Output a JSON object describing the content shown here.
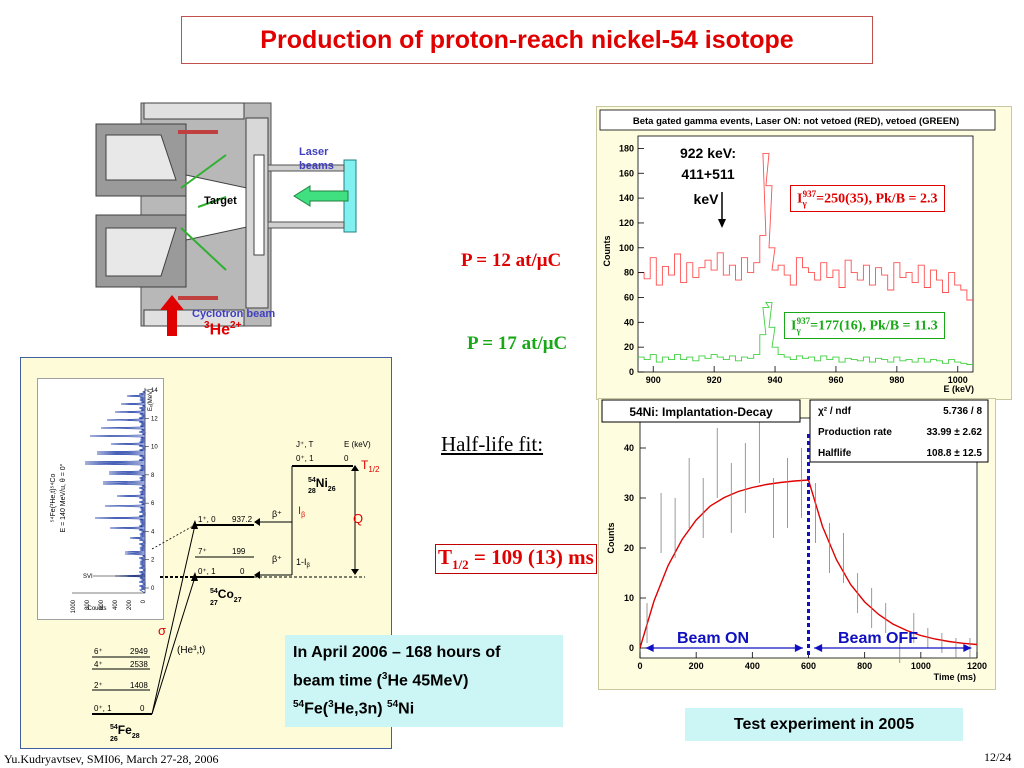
{
  "slide": {
    "title": "Production of proton-reach nickel-54 isotope",
    "footer_left": "Yu.Kudryavtsev, SMI06, March 27-28, 2006",
    "page_number": "12/24"
  },
  "setup": {
    "laser_label_1": "Laser",
    "laser_label_2": "beams",
    "target_label": "Target",
    "cyclotron_label": "Cyclotron beam",
    "he_label": "He",
    "he_mass": "3",
    "he_charge": "2+"
  },
  "pressure": {
    "p1": "P = 12 at/μC",
    "p2": "P = 17 at/μC"
  },
  "halflife": {
    "label": "Half-life fit:",
    "result_T": "T",
    "result_sub": "1/2",
    "result_value": " = 109 (13) ms"
  },
  "info_box": {
    "line1": "In April 2006 – 168 hours of",
    "line2a": "beam time (",
    "line2_sup": "3",
    "line2b": "He 45MeV)",
    "line3_sup1": "54",
    "line3a": "Fe(",
    "line3_sup2": "3",
    "line3b": "He,3n) ",
    "line3_sup3": "54",
    "line3c": "Ni"
  },
  "test_box": {
    "label": "Test experiment in 2005"
  },
  "gamma_chart": {
    "title": "Beta gated gamma events, Laser ON: not vetoed (RED), vetoed (GREEN)",
    "ylabel": "Counts",
    "xlabel": "E (keV)",
    "annotation_1": "922 keV:",
    "annotation_2": "411+511",
    "annotation_3": "keV",
    "red_label_pre": "I",
    "red_label_sub": "γ",
    "red_label_sup": "937",
    "red_label_post": "=250(35), Pk/B = 2.3",
    "green_label_pre": "I",
    "green_label_sub": "γ",
    "green_label_sup": "937",
    "green_label_post": "=177(16), Pk/B = 11.3"
  },
  "decay_chart": {
    "title": "54Ni: Implantation-Decay",
    "ylabel": "Counts",
    "xlabel": "Time (ms)",
    "stats": [
      {
        "name": "χ² / ndf",
        "value": "5.736 / 8"
      },
      {
        "name": "Production rate",
        "value": "33.99 ± 2.62"
      },
      {
        "name": "Halflife",
        "value": "108.8 ± 12.5"
      }
    ],
    "beam_on": "Beam ON",
    "beam_off": "Beam OFF"
  },
  "level_scheme": {
    "ni_label": "Ni",
    "ni_mass": "54",
    "ni_z": "28",
    "ni_n": "26",
    "co_label": "Co",
    "co_mass": "54",
    "co_z": "27",
    "co_n": "27",
    "fe_label": "Fe",
    "fe_mass": "54",
    "fe_z": "26",
    "fe_n": "28",
    "jt_header": "J⁺, T",
    "e_header": "E (keV)",
    "ni_level_jt": "0⁺, 1",
    "ni_level_e": "0",
    "co_levels": [
      {
        "jt": "1⁺, 0",
        "e": "937.2"
      },
      {
        "jt": "7⁺",
        "e": "199"
      },
      {
        "jt": "0⁺, 1",
        "e": "0"
      }
    ],
    "fe_levels": [
      {
        "jt": "6⁺",
        "e": "2949"
      },
      {
        "jt": "4⁺",
        "e": "2538"
      },
      {
        "jt": "2⁺",
        "e": "1408"
      },
      {
        "jt": "0⁺, 1",
        "e": "0"
      }
    ],
    "t_half": "T",
    "t_half_sub": "1/2",
    "q_label": "Q",
    "beta_plus_1": "β⁺",
    "i_beta": "I",
    "i_beta_sub": "β",
    "beta_plus_2": "β⁺",
    "one_minus_i": "1-I",
    "one_minus_i_sub": "β",
    "sigma": "σ",
    "reaction": "(He³,t)"
  },
  "spectrum_inset": {
    "rot_label_1": "⁵⁴Fe(³He,t)⁵⁴Co",
    "rot_label_2": "E = 140 MeV/u, θ = 0°",
    "ex_label": "Eₓ(MeV)",
    "counts_label": "Counts",
    "svi_label": "SVI",
    "tick_counts": [
      "1000",
      "800",
      "600",
      "400",
      "200",
      "0"
    ],
    "tick_ex": [
      "14",
      "12",
      "10",
      "8",
      "6",
      "4",
      "2",
      "0"
    ]
  },
  "chart_data": [
    {
      "type": "line",
      "title": "Beta gated gamma events, Laser ON: not vetoed (RED), vetoed (GREEN)",
      "xlabel": "E (keV)",
      "ylabel": "Counts",
      "xlim": [
        895,
        1005
      ],
      "ylim": [
        0,
        190
      ],
      "xticks": [
        900,
        920,
        940,
        960,
        980,
        1000
      ],
      "yticks": [
        0,
        20,
        40,
        60,
        80,
        100,
        120,
        140,
        160,
        180
      ],
      "series": [
        {
          "name": "RED",
          "color": "#ff5050",
          "x": [
            896,
            898,
            900,
            902,
            904,
            906,
            908,
            910,
            912,
            914,
            916,
            918,
            920,
            922,
            924,
            926,
            928,
            930,
            932,
            934,
            936,
            937,
            938,
            939,
            940,
            942,
            944,
            946,
            948,
            950,
            952,
            954,
            956,
            958,
            960,
            962,
            964,
            966,
            968,
            970,
            972,
            974,
            976,
            978,
            980,
            982,
            984,
            986,
            988,
            990,
            992,
            994,
            996,
            998,
            1000,
            1002,
            1004
          ],
          "y": [
            80,
            75,
            92,
            70,
            85,
            78,
            95,
            72,
            88,
            76,
            84,
            90,
            82,
            96,
            78,
            86,
            74,
            92,
            80,
            88,
            110,
            176,
            150,
            100,
            82,
            86,
            78,
            70,
            92,
            84,
            80,
            74,
            88,
            76,
            82,
            68,
            90,
            80,
            74,
            86,
            70,
            84,
            78,
            66,
            88,
            76,
            80,
            72,
            86,
            68,
            82,
            74,
            64,
            80,
            70,
            66,
            58
          ]
        },
        {
          "name": "GREEN",
          "color": "#40d040",
          "x": [
            896,
            898,
            900,
            902,
            904,
            906,
            908,
            910,
            912,
            914,
            916,
            918,
            920,
            922,
            924,
            926,
            928,
            930,
            932,
            934,
            936,
            937,
            938,
            939,
            940,
            942,
            944,
            946,
            948,
            950,
            952,
            954,
            956,
            958,
            960,
            962,
            964,
            966,
            968,
            970,
            972,
            974,
            976,
            978,
            980,
            982,
            984,
            986,
            988,
            990,
            992,
            994,
            996,
            998,
            1000,
            1002,
            1004
          ],
          "y": [
            12,
            10,
            14,
            8,
            12,
            10,
            14,
            10,
            12,
            9,
            13,
            11,
            14,
            12,
            10,
            13,
            9,
            12,
            11,
            14,
            30,
            52,
            56,
            36,
            20,
            14,
            12,
            10,
            13,
            11,
            12,
            9,
            13,
            10,
            12,
            8,
            11,
            10,
            9,
            12,
            8,
            11,
            10,
            8,
            12,
            9,
            10,
            8,
            11,
            8,
            10,
            9,
            7,
            10,
            8,
            7,
            6
          ]
        }
      ],
      "annotations": [
        "922 keV:",
        "411+511",
        "keV"
      ]
    },
    {
      "type": "line",
      "title": "54Ni: Implantation-Decay",
      "xlabel": "Time (ms)",
      "ylabel": "Counts",
      "xlim": [
        0,
        1200
      ],
      "ylim": [
        -2,
        46
      ],
      "xticks": [
        0,
        200,
        400,
        600,
        800,
        1000,
        1200
      ],
      "yticks": [
        0,
        10,
        20,
        30,
        40
      ],
      "series": [
        {
          "name": "fit",
          "color": "#e00000",
          "x": [
            0,
            50,
            100,
            150,
            200,
            250,
            300,
            350,
            400,
            450,
            500,
            550,
            600,
            650,
            700,
            750,
            800,
            850,
            900,
            950,
            1000,
            1050,
            1100,
            1150,
            1200
          ],
          "y": [
            0,
            9.4,
            16.5,
            21.7,
            25.6,
            28.4,
            30.1,
            31.3,
            32.1,
            32.7,
            33.1,
            33.4,
            33.6,
            24.3,
            17.6,
            12.7,
            9.2,
            6.7,
            4.8,
            3.5,
            2.5,
            1.8,
            1.3,
            0.95,
            0.7
          ]
        },
        {
          "name": "data",
          "color": "#000000",
          "x": [
            25,
            75,
            125,
            175,
            225,
            275,
            325,
            375,
            425,
            475,
            525,
            575,
            625,
            675,
            725,
            775,
            825,
            875,
            925,
            975,
            1025,
            1075,
            1125,
            1175
          ],
          "y": [
            5,
            25,
            24,
            31,
            28,
            37,
            30,
            34,
            40,
            28,
            31,
            33,
            27,
            20,
            18,
            11,
            8,
            6,
            0,
            4,
            2,
            1,
            0,
            0
          ],
          "err": [
            4,
            6,
            6,
            7,
            6,
            7,
            7,
            7,
            7,
            6,
            7,
            7,
            6,
            5,
            5,
            4,
            4,
            3,
            3,
            3,
            2,
            2,
            2,
            2
          ]
        }
      ],
      "annotations": [
        "Beam ON",
        "Beam OFF"
      ]
    }
  ]
}
